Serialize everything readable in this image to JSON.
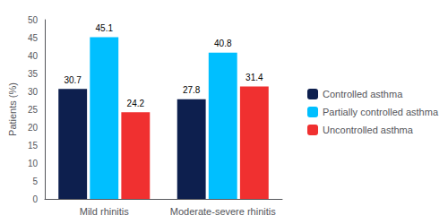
{
  "chart_data": {
    "type": "bar",
    "categories": [
      "Mild rhinitis",
      "Moderate-severe rhinitis"
    ],
    "series": [
      {
        "name": "Controlled asthma",
        "color": "#0d1f4e",
        "values": [
          30.7,
          27.8
        ]
      },
      {
        "name": "Partially controlled asthma",
        "color": "#00bfff",
        "values": [
          45.1,
          40.8
        ]
      },
      {
        "name": "Uncontrolled asthma",
        "color": "#f03030",
        "values": [
          24.2,
          31.4
        ]
      }
    ],
    "ylabel": "Patients (%)",
    "ylim": [
      0,
      50
    ],
    "yticks": [
      0,
      5,
      10,
      15,
      20,
      25,
      30,
      35,
      40,
      45,
      50
    ],
    "grid": false,
    "legend": "right",
    "data_labels": true
  }
}
